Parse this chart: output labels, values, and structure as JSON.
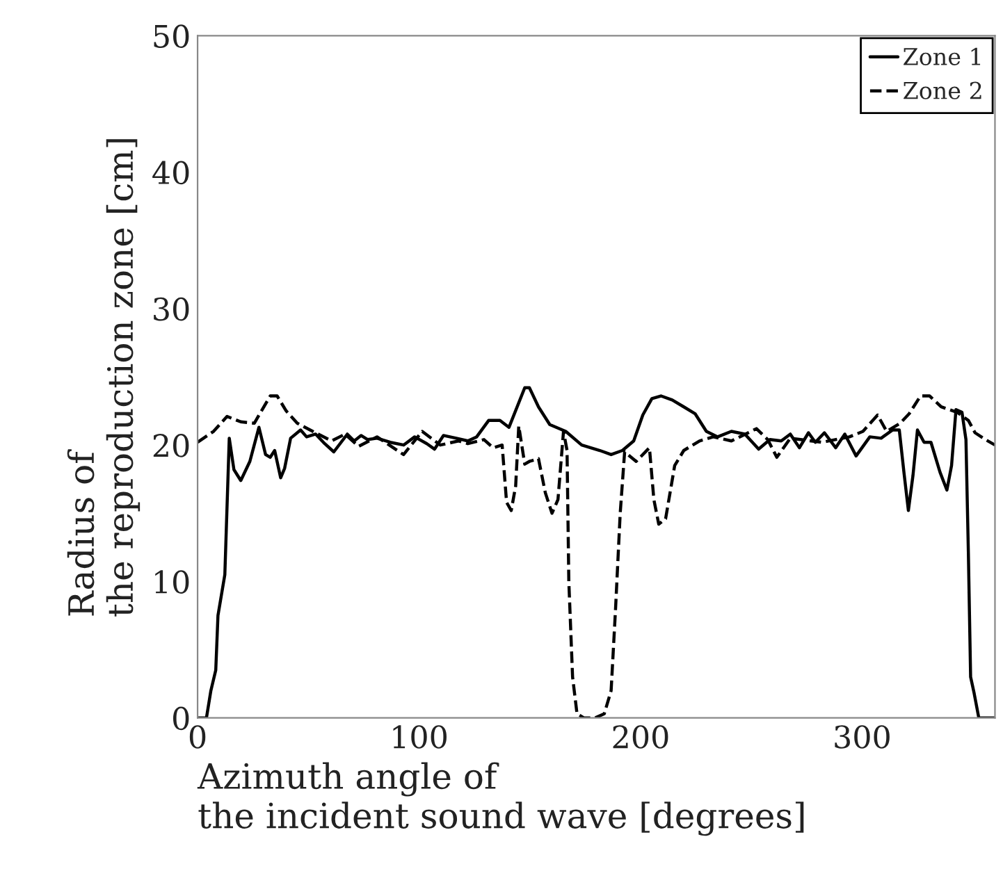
{
  "chart_data": {
    "type": "line",
    "xlabel": "Azimuth angle of\nthe incident sound wave [degrees]",
    "ylabel": "Radius of\nthe reproduction zone [cm]",
    "xlim": [
      0,
      360
    ],
    "ylim": [
      0,
      50
    ],
    "xticks": [
      0,
      100,
      200,
      300
    ],
    "yticks": [
      0,
      10,
      20,
      30,
      40,
      50
    ],
    "grid": false,
    "legend": "top right",
    "series": [
      {
        "name": "Zone 1",
        "color": "#000000",
        "line_style": "solid",
        "x": [
          0,
          4,
          6,
          8.2,
          9.2,
          12.3,
          14.3,
          16.4,
          19.5,
          23.6,
          27.7,
          30.7,
          32.8,
          34.8,
          37.5,
          39.3,
          42,
          46.5,
          49.2,
          53.3,
          57.4,
          61.5,
          67.6,
          70.7,
          73.8,
          76.8,
          81,
          87,
          93,
          98,
          103.5,
          107,
          111,
          116.8,
          122,
          126,
          131.4,
          136.5,
          140.6,
          147.7,
          149.8,
          153.9,
          159,
          166.2,
          173.4,
          181.6,
          186.7,
          191.8,
          196.9,
          201,
          205.1,
          209.2,
          214.3,
          219.5,
          224.6,
          229.7,
          234.8,
          241,
          247.1,
          253.3,
          258.4,
          263.5,
          267.6,
          271.7,
          275.8,
          278.9,
          283,
          288.1,
          292.2,
          297.3,
          300.4,
          303.5,
          308.6,
          313.7,
          316.8,
          318.9,
          320.9,
          323,
          325,
          328,
          331.1,
          335.2,
          338.3,
          340.4,
          342.4,
          345.1,
          346.9,
          348,
          349,
          350.6,
          352.7,
          355.7,
          360
        ],
        "values": [
          0,
          0,
          2,
          3.5,
          7.5,
          10.5,
          20.5,
          18.2,
          17.4,
          18.8,
          21.3,
          19.3,
          19.1,
          19.6,
          17.6,
          18.3,
          20.5,
          21.1,
          20.6,
          20.8,
          20.1,
          19.5,
          20.8,
          20.3,
          20.7,
          20.4,
          20.5,
          20.2,
          20.0,
          20.6,
          20.1,
          19.7,
          20.7,
          20.5,
          20.3,
          20.6,
          21.8,
          21.8,
          21.3,
          24.2,
          24.2,
          22.8,
          21.5,
          21.0,
          20.0,
          19.6,
          19.3,
          19.6,
          20.3,
          22.2,
          23.4,
          23.6,
          23.3,
          22.8,
          22.3,
          21.0,
          20.6,
          21.0,
          20.8,
          19.7,
          20.4,
          20.3,
          20.8,
          19.8,
          20.9,
          20.2,
          20.9,
          19.8,
          20.8,
          19.2,
          19.9,
          20.6,
          20.5,
          21.1,
          21.1,
          18.0,
          15.2,
          17.8,
          21.1,
          20.2,
          20.2,
          18.0,
          16.7,
          18.5,
          22.6,
          22.4,
          20.4,
          12,
          3.0,
          1.8,
          0,
          0,
          0
        ]
      },
      {
        "name": "Zone 2",
        "color": "#000000",
        "line_style": "dashed",
        "x": [
          0,
          7.2,
          13.3,
          19.5,
          25.6,
          32.8,
          35.9,
          40,
          45,
          52,
          60.5,
          66.6,
          72.7,
          81,
          93,
          101.4,
          109.6,
          117.8,
          122,
          129.3,
          133.4,
          137.5,
          139.5,
          141.6,
          143.6,
          145,
          147.7,
          149.8,
          153.9,
          157,
          160,
          162.7,
          165.2,
          166.8,
          167.6,
          169.3,
          171.3,
          174.4,
          179.5,
          183.6,
          186.7,
          188.7,
          190.8,
          192.8,
          198,
          204,
          206,
          208.2,
          211.3,
          215.4,
          219.5,
          226.6,
          232.8,
          241,
          252.3,
          257.4,
          261.5,
          267.6,
          281.9,
          294.3,
          300.4,
          307,
          311.1,
          317.2,
          321.3,
          326.4,
          330.5,
          335.7,
          342.9,
          348,
          351,
          355.7,
          360
        ],
        "values": [
          20.2,
          21.0,
          22.1,
          21.7,
          21.6,
          23.6,
          23.6,
          22.5,
          21.6,
          21.0,
          20.3,
          20.8,
          19.9,
          20.6,
          19.3,
          21.0,
          20.0,
          20.3,
          20.1,
          20.4,
          19.8,
          20.0,
          15.8,
          15.2,
          17.0,
          21.4,
          18.6,
          18.8,
          19.0,
          16.5,
          15.0,
          16.0,
          21.0,
          19.6,
          10,
          3.0,
          0.3,
          0,
          0,
          0.3,
          2.0,
          8.0,
          15.0,
          19.5,
          18.8,
          19.8,
          16.0,
          14.2,
          14.6,
          18.5,
          19.6,
          20.3,
          20.6,
          20.3,
          21.2,
          20.4,
          19.1,
          20.5,
          20.2,
          20.6,
          21.0,
          22.2,
          21.0,
          21.6,
          22.3,
          23.6,
          23.6,
          22.8,
          22.4,
          21.8,
          20.9,
          20.4,
          20.0
        ]
      }
    ]
  }
}
